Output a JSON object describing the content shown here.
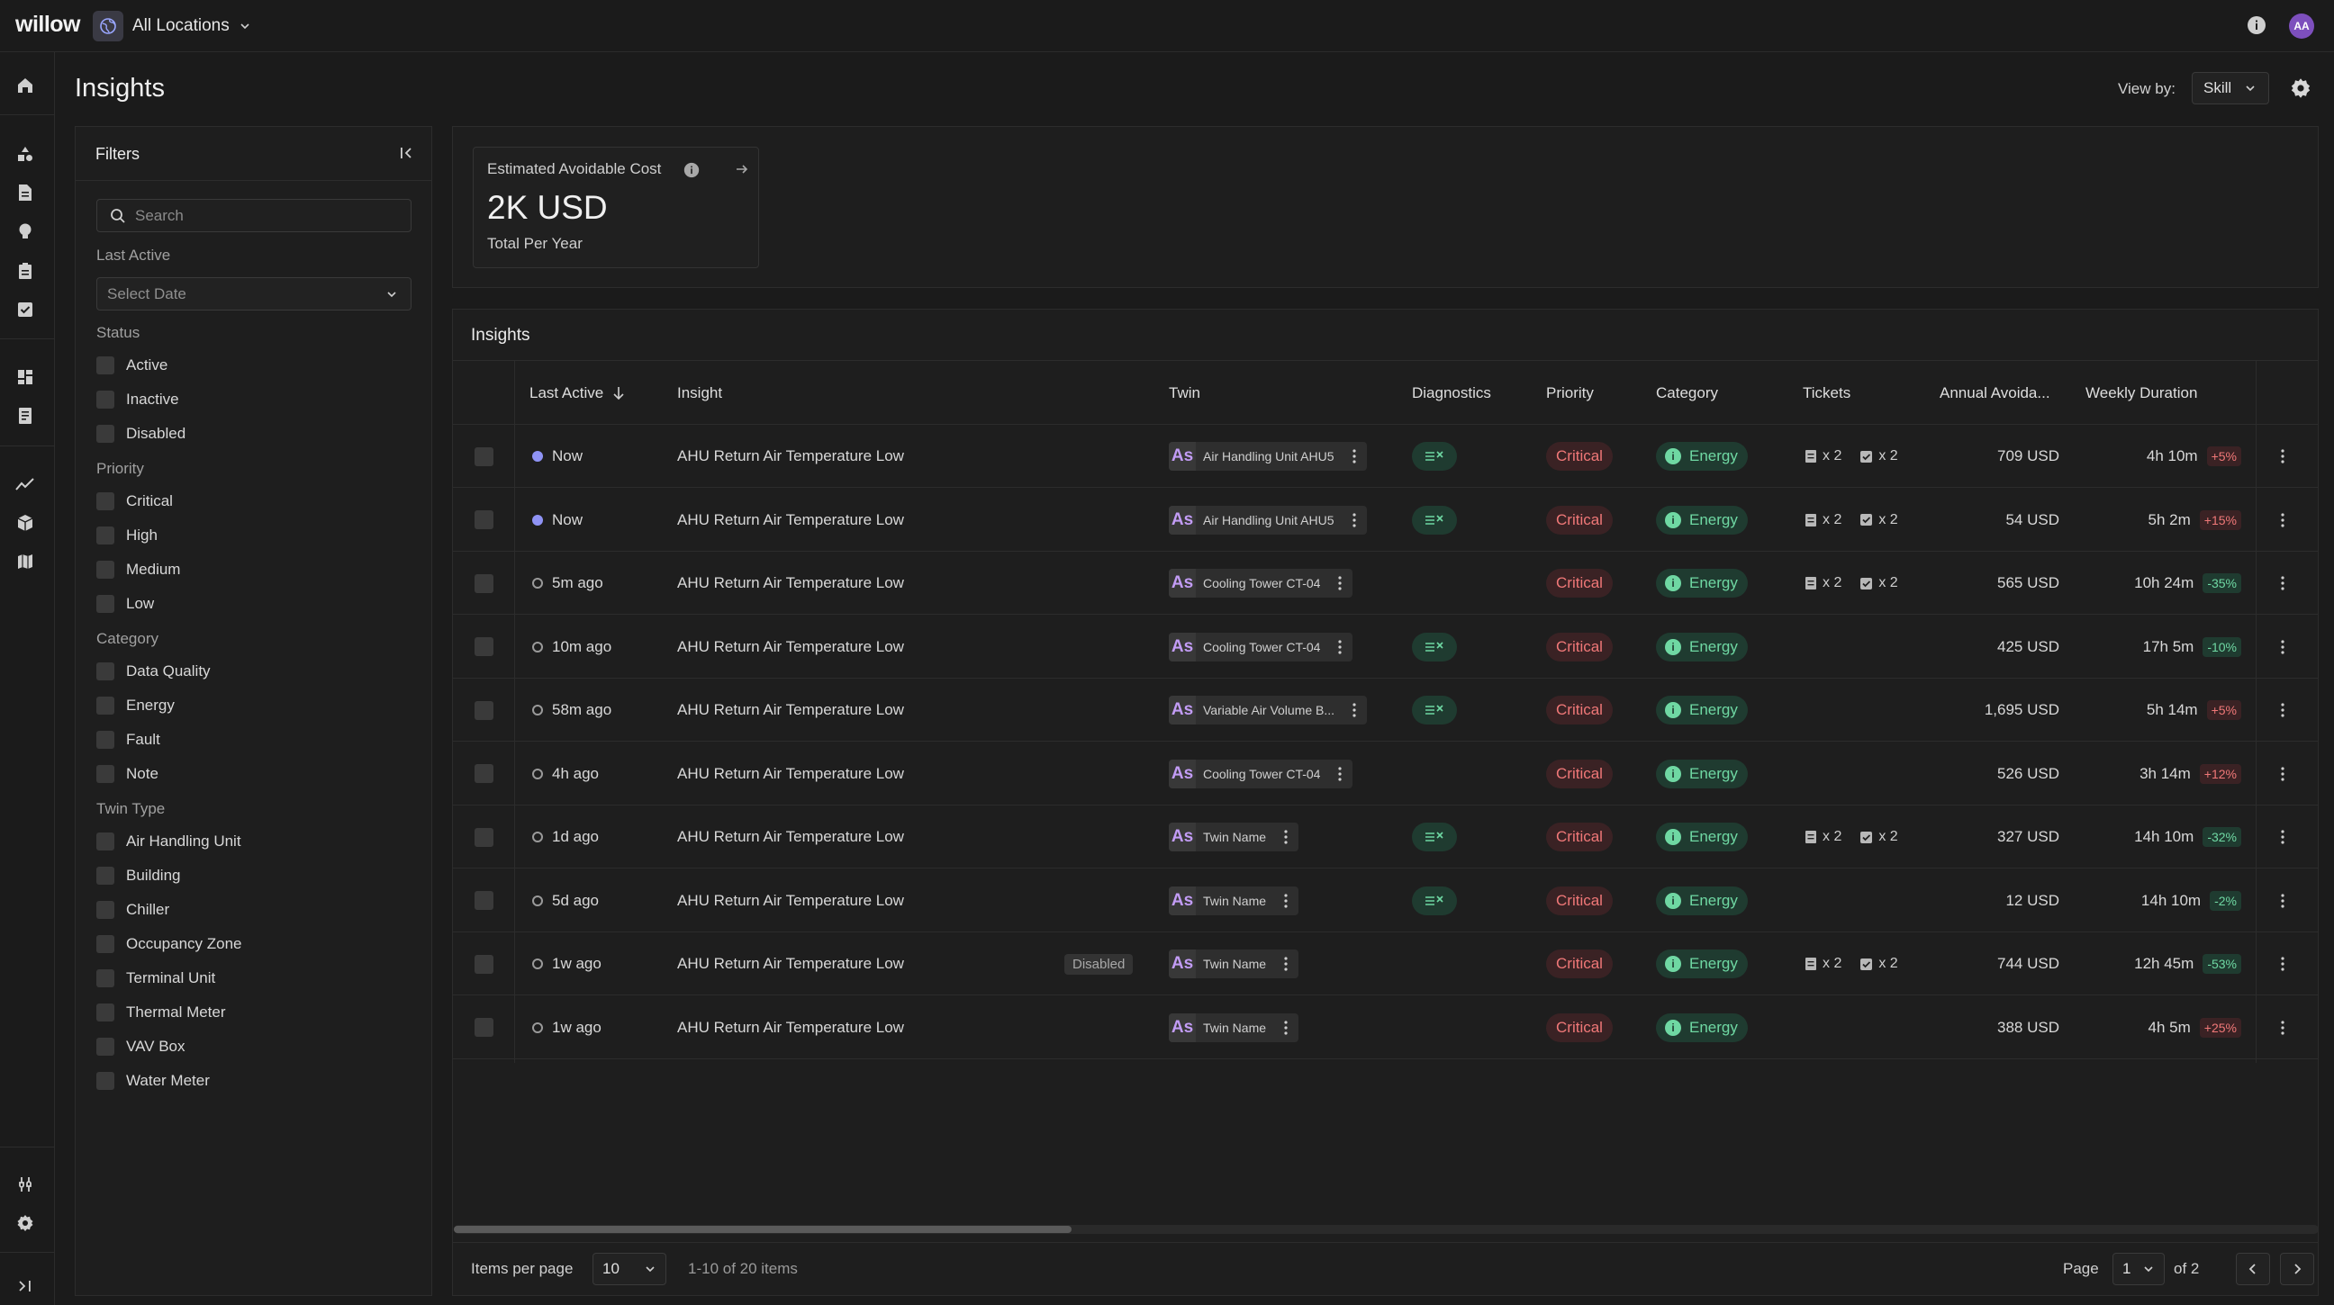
{
  "app": {
    "logo": "willow",
    "location": "All Locations",
    "avatar_initials": "AA"
  },
  "page": {
    "title": "Insights",
    "view_by_label": "View by:",
    "view_by_value": "Skill"
  },
  "filters": {
    "title": "Filters",
    "search_placeholder": "Search",
    "last_active_label": "Last Active",
    "date_placeholder": "Select Date",
    "groups": [
      {
        "label": "Status",
        "options": [
          "Active",
          "Inactive",
          "Disabled"
        ]
      },
      {
        "label": "Priority",
        "options": [
          "Critical",
          "High",
          "Medium",
          "Low"
        ]
      },
      {
        "label": "Category",
        "options": [
          "Data Quality",
          "Energy",
          "Fault",
          "Note"
        ]
      },
      {
        "label": "Twin Type",
        "options": [
          "Air Handling Unit",
          "Building",
          "Chiller",
          "Occupancy Zone",
          "Terminal Unit",
          "Thermal Meter",
          "VAV Box",
          "Water Meter"
        ]
      }
    ]
  },
  "cost_card": {
    "title": "Estimated Avoidable Cost",
    "value": "2K USD",
    "subtitle": "Total Per Year"
  },
  "insights": {
    "title": "Insights",
    "columns": {
      "last_active": "Last Active",
      "insight": "Insight",
      "twin": "Twin",
      "diagnostics": "Diagnostics",
      "priority": "Priority",
      "category": "Category",
      "tickets": "Tickets",
      "annual": "Annual Avoida...",
      "weekly": "Weekly Duration"
    },
    "rows": [
      {
        "active": true,
        "last_active": "Now",
        "insight": "AHU Return Air Temperature Low",
        "badge": "",
        "twin_icon": "As",
        "twin": "Air Handling Unit AHU5",
        "diagnostics": true,
        "priority": "Critical",
        "category": "Energy",
        "tickets": true,
        "ticket_a": "x 2",
        "ticket_b": "x 2",
        "annual_cost": "709 USD",
        "weekly": "4h 10m",
        "change": "+5%",
        "trend": "up"
      },
      {
        "active": true,
        "last_active": "Now",
        "insight": "AHU Return Air Temperature Low",
        "badge": "",
        "twin_icon": "As",
        "twin": "Air Handling Unit AHU5",
        "diagnostics": true,
        "priority": "Critical",
        "category": "Energy",
        "tickets": true,
        "ticket_a": "x 2",
        "ticket_b": "x 2",
        "annual_cost": "54 USD",
        "weekly": "5h 2m",
        "change": "+15%",
        "trend": "up"
      },
      {
        "active": false,
        "last_active": "5m ago",
        "insight": "AHU Return Air Temperature Low",
        "badge": "",
        "twin_icon": "As",
        "twin": "Cooling Tower CT-04",
        "diagnostics": false,
        "priority": "Critical",
        "category": "Energy",
        "tickets": true,
        "ticket_a": "x 2",
        "ticket_b": "x 2",
        "annual_cost": "565 USD",
        "weekly": "10h 24m",
        "change": "-35%",
        "trend": "down"
      },
      {
        "active": false,
        "last_active": "10m ago",
        "insight": "AHU Return Air Temperature Low",
        "badge": "",
        "twin_icon": "As",
        "twin": "Cooling Tower CT-04",
        "diagnostics": true,
        "priority": "Critical",
        "category": "Energy",
        "tickets": false,
        "ticket_a": "",
        "ticket_b": "",
        "annual_cost": "425 USD",
        "weekly": "17h 5m",
        "change": "-10%",
        "trend": "down"
      },
      {
        "active": false,
        "last_active": "58m ago",
        "insight": "AHU Return Air Temperature Low",
        "badge": "",
        "twin_icon": "As",
        "twin": "Variable Air Volume B...",
        "diagnostics": true,
        "priority": "Critical",
        "category": "Energy",
        "tickets": false,
        "ticket_a": "",
        "ticket_b": "",
        "annual_cost": "1,695 USD",
        "weekly": "5h 14m",
        "change": "+5%",
        "trend": "up"
      },
      {
        "active": false,
        "last_active": "4h ago",
        "insight": "AHU Return Air Temperature Low",
        "badge": "",
        "twin_icon": "As",
        "twin": "Cooling Tower CT-04",
        "diagnostics": false,
        "priority": "Critical",
        "category": "Energy",
        "tickets": false,
        "ticket_a": "",
        "ticket_b": "",
        "annual_cost": "526 USD",
        "weekly": "3h 14m",
        "change": "+12%",
        "trend": "up"
      },
      {
        "active": false,
        "last_active": "1d ago",
        "insight": "AHU Return Air Temperature Low",
        "badge": "",
        "twin_icon": "As",
        "twin": "Twin Name",
        "diagnostics": true,
        "priority": "Critical",
        "category": "Energy",
        "tickets": true,
        "ticket_a": "x 2",
        "ticket_b": "x 2",
        "annual_cost": "327 USD",
        "weekly": "14h 10m",
        "change": "-32%",
        "trend": "down"
      },
      {
        "active": false,
        "last_active": "5d ago",
        "insight": "AHU Return Air Temperature Low",
        "badge": "",
        "twin_icon": "As",
        "twin": "Twin Name",
        "diagnostics": true,
        "priority": "Critical",
        "category": "Energy",
        "tickets": false,
        "ticket_a": "",
        "ticket_b": "",
        "annual_cost": "12 USD",
        "weekly": "14h 10m",
        "change": "-2%",
        "trend": "down"
      },
      {
        "active": false,
        "last_active": "1w ago",
        "insight": "AHU Return Air Temperature Low",
        "badge": "Disabled",
        "twin_icon": "As",
        "twin": "Twin Name",
        "diagnostics": false,
        "priority": "Critical",
        "category": "Energy",
        "tickets": true,
        "ticket_a": "x 2",
        "ticket_b": "x 2",
        "annual_cost": "744 USD",
        "weekly": "12h 45m",
        "change": "-53%",
        "trend": "down"
      },
      {
        "active": false,
        "last_active": "1w ago",
        "insight": "AHU Return Air Temperature Low",
        "badge": "",
        "twin_icon": "As",
        "twin": "Twin Name",
        "diagnostics": false,
        "priority": "Critical",
        "category": "Energy",
        "tickets": false,
        "ticket_a": "",
        "ticket_b": "",
        "annual_cost": "388 USD",
        "weekly": "4h 5m",
        "change": "+25%",
        "trend": "up"
      }
    ]
  },
  "pagination": {
    "items_per_page_label": "Items per page",
    "items_per_page": "10",
    "range": "1-10 of 20 items",
    "page_label": "Page",
    "page": "1",
    "of": "of 2"
  }
}
